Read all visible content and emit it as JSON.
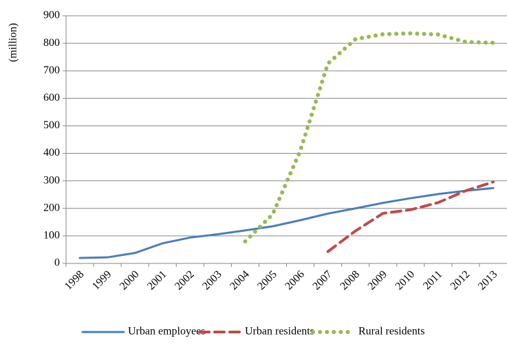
{
  "chart_data": {
    "type": "line",
    "y_label": "(million)",
    "categories": [
      "1998",
      "1999",
      "2000",
      "2001",
      "2002",
      "2003",
      "2004",
      "2005",
      "2006",
      "2007",
      "2008",
      "2009",
      "2010",
      "2011",
      "2012",
      "2013"
    ],
    "series": [
      {
        "name": "Urban employees",
        "color": "#4a7ebb",
        "dash": "solid",
        "values": [
          20,
          22,
          38,
          73,
          94,
          106,
          120,
          135,
          157,
          181,
          200,
          220,
          237,
          252,
          264,
          274
        ]
      },
      {
        "name": "Urban residents",
        "color": "#be4b48",
        "dash": "dash",
        "values": [
          null,
          null,
          null,
          null,
          null,
          null,
          null,
          null,
          null,
          43,
          118,
          182,
          195,
          221,
          264,
          296
        ]
      },
      {
        "name": "Rural residents",
        "color": "#98b954",
        "dash": "dot",
        "values": [
          null,
          null,
          null,
          null,
          null,
          null,
          80,
          179,
          410,
          726,
          815,
          833,
          836,
          832,
          805,
          802
        ]
      }
    ],
    "ylim": [
      0,
      900
    ],
    "yticks": [
      0,
      100,
      200,
      300,
      400,
      500,
      600,
      700,
      800,
      900
    ],
    "grid": true,
    "legend": "bottom"
  }
}
